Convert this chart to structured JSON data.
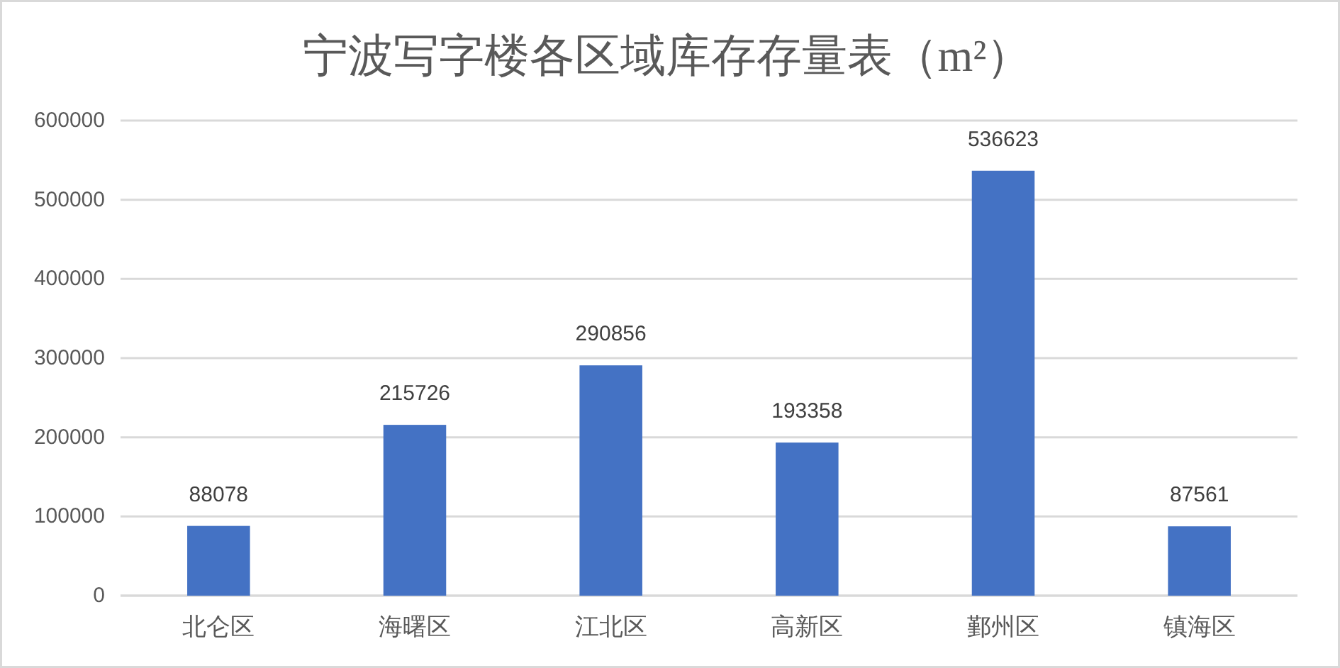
{
  "chart_data": {
    "type": "bar",
    "title": "宁波写字楼各区域库存存量表（m²）",
    "categories": [
      "北仑区",
      "海曙区",
      "江北区",
      "高新区",
      "鄞州区",
      "镇海区"
    ],
    "values": [
      88078,
      215726,
      290856,
      193358,
      536623,
      87561
    ],
    "color": "#4472c4",
    "ylim": [
      0,
      600000
    ],
    "yticks": [
      0,
      100000,
      200000,
      300000,
      400000,
      500000,
      600000
    ],
    "grid": "y",
    "data_labels": true
  }
}
